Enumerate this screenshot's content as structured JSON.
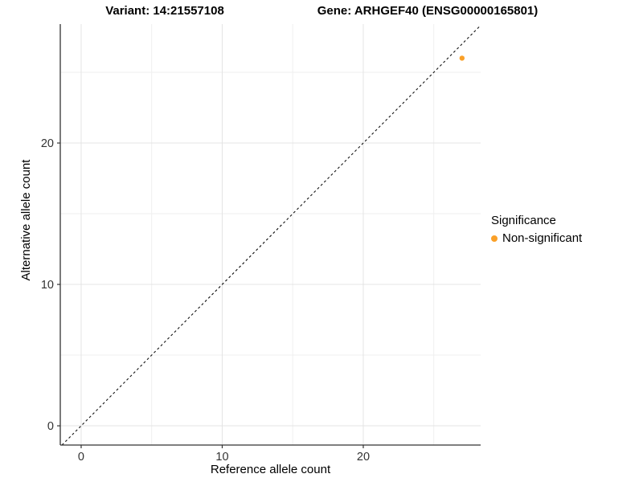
{
  "chart_data": {
    "type": "scatter",
    "title_left": "Variant: 14:21557108",
    "title_right": "Gene: ARHGEF40 (ENSG00000165801)",
    "xlabel": "Reference allele count",
    "ylabel": "Alternative allele count",
    "xlim": [
      -1.48,
      28.32
    ],
    "ylim": [
      -1.36,
      28.41
    ],
    "xticks": [
      0,
      10,
      20
    ],
    "yticks": [
      0,
      10,
      20
    ],
    "xticks_minor": [
      5,
      15,
      25
    ],
    "yticks_minor": [
      5,
      15,
      25
    ],
    "grid": true,
    "series": [
      {
        "name": "Non-significant",
        "color": "#FAA028",
        "points": [
          {
            "x": 27,
            "y": 26
          }
        ]
      }
    ],
    "reference_line": {
      "type": "identity",
      "slope": 1,
      "intercept": 0,
      "style": "dashed",
      "color": "#111111"
    },
    "legend": {
      "title": "Significance",
      "position": "right",
      "items": [
        {
          "label": "Non-significant",
          "color": "#FAA028"
        }
      ]
    },
    "colors": {
      "grid_major": "#E4E4E4",
      "grid_minor": "#EFEFEF",
      "axis": "#333333",
      "tick_label": "#333333",
      "panel_background": "#FFFFFF"
    }
  }
}
